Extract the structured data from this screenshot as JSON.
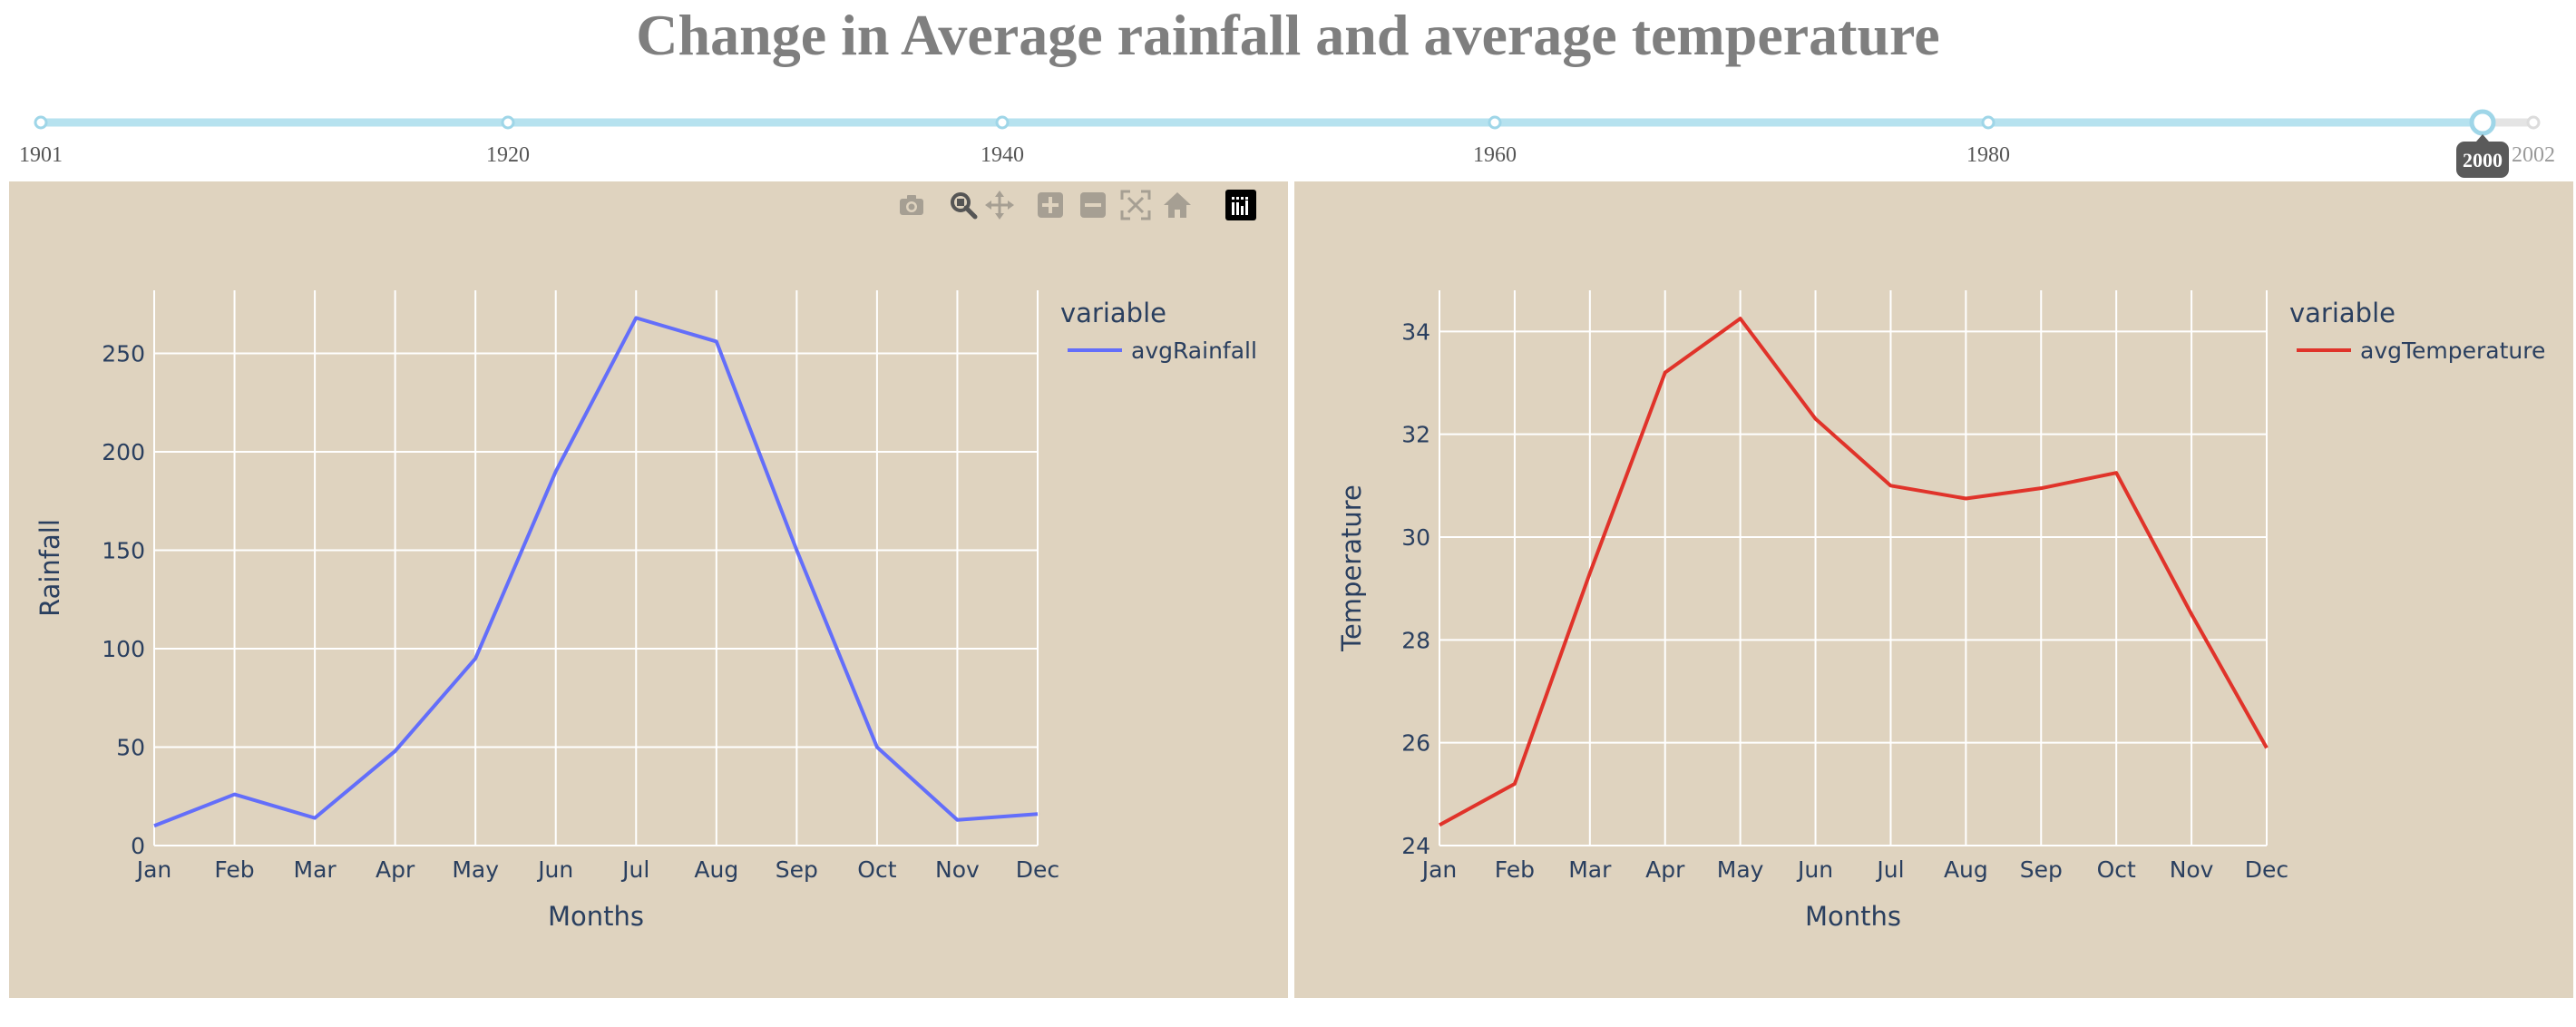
{
  "title": "Change in Average rainfall and average temperature",
  "slider": {
    "ticks": [
      {
        "label": "1901",
        "value": 1901
      },
      {
        "label": "1920",
        "value": 1920
      },
      {
        "label": "1940",
        "value": 1940
      },
      {
        "label": "1960",
        "value": 1960
      },
      {
        "label": "1980",
        "value": 1980
      },
      {
        "label": "2002",
        "value": 2002
      }
    ],
    "current_value": 2000,
    "current_label": "2000",
    "track_color": "#b6e2ef",
    "inactive_color": "#e4e4e4"
  },
  "toolbar": {
    "icons": [
      "camera-icon",
      "zoom-icon",
      "pan-icon",
      "zoom-in-icon",
      "zoom-out-icon",
      "autoscale-icon",
      "reset-axes-icon",
      "plotly-logo-icon"
    ]
  },
  "chart_data": [
    {
      "type": "line",
      "x": [
        "Jan",
        "Feb",
        "Mar",
        "Apr",
        "May",
        "Jun",
        "Jul",
        "Aug",
        "Sep",
        "Oct",
        "Nov",
        "Dec"
      ],
      "series": [
        {
          "name": "avgRainfall",
          "values": [
            10,
            26,
            14,
            48,
            95,
            190,
            268,
            256,
            150,
            50,
            13,
            16
          ],
          "color": "#636efa"
        }
      ],
      "xlabel": "Months",
      "ylabel": "Rainfall",
      "ylim": [
        0,
        282
      ],
      "yticks": [
        0,
        50,
        100,
        150,
        200,
        250
      ],
      "legend_title": "variable",
      "legend_position": "top-right",
      "grid": true,
      "background": "#dfd3bf"
    },
    {
      "type": "line",
      "x": [
        "Jan",
        "Feb",
        "Mar",
        "Apr",
        "May",
        "Jun",
        "Jul",
        "Aug",
        "Sep",
        "Oct",
        "Nov",
        "Dec"
      ],
      "series": [
        {
          "name": "avgTemperature",
          "values": [
            24.4,
            25.2,
            29.3,
            33.2,
            34.25,
            32.3,
            31.0,
            30.75,
            30.95,
            31.25,
            28.5,
            25.9
          ],
          "color": "#e0332a"
        }
      ],
      "xlabel": "Months",
      "ylabel": "Temperature",
      "ylim": [
        24,
        34.8
      ],
      "yticks": [
        24,
        26,
        28,
        30,
        32,
        34
      ],
      "legend_title": "variable",
      "legend_position": "top-right",
      "grid": true,
      "background": "#dfd3bf"
    }
  ]
}
